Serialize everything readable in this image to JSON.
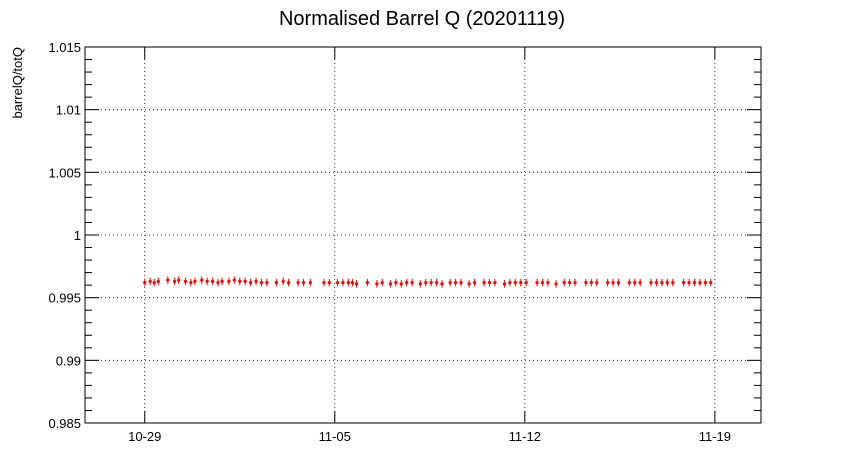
{
  "chart_data": {
    "type": "scatter",
    "title": "Normalised Barrel Q (20201119)",
    "xlabel": "",
    "ylabel": "barrelQ/totQ",
    "x_ticks": [
      "10-29",
      "11-05",
      "11-12",
      "11-19"
    ],
    "y_ticks": [
      "0.985",
      "0.99",
      "0.995",
      "1",
      "1.005",
      "1.01",
      "1.015"
    ],
    "y_tick_values": [
      0.985,
      0.99,
      0.995,
      1.0,
      1.005,
      1.01,
      1.015
    ],
    "ylim": [
      0.985,
      1.015
    ],
    "xlim_days_from_10_29": [
      -2.2,
      22.7
    ],
    "grid": true,
    "marker_color": "#ff0000",
    "error_bar": 0.0003,
    "series": [
      {
        "name": "",
        "x": [
          "2020-10-29 00:00",
          "2020-10-29 04:48",
          "2020-10-29 08:24",
          "2020-10-29 12:00",
          "2020-10-29 20:24",
          "2020-10-30 02:24",
          "2020-10-30 06:00",
          "2020-10-30 12:00",
          "2020-10-30 16:48",
          "2020-10-30 20:24",
          "2020-10-31 02:24",
          "2020-10-31 07:12",
          "2020-10-31 12:00",
          "2020-10-31 16:48",
          "2020-10-31 20:24",
          "2020-11-01 02:24",
          "2020-11-01 07:12",
          "2020-11-01 12:00",
          "2020-11-01 16:48",
          "2020-11-01 21:36",
          "2020-11-02 02:24",
          "2020-11-02 07:12",
          "2020-11-02 12:00",
          "2020-11-02 20:24",
          "2020-11-03 02:24",
          "2020-11-03 07:12",
          "2020-11-03 15:36",
          "2020-11-03 20:24",
          "2020-11-04 02:24",
          "2020-11-04 14:24",
          "2020-11-04 19:12",
          "2020-11-05 02:24",
          "2020-11-05 07:12",
          "2020-11-05 12:00",
          "2020-11-05 15:36",
          "2020-11-05 19:12",
          "2020-11-06 04:48",
          "2020-11-06 13:12",
          "2020-11-06 18:00",
          "2020-11-07 01:12",
          "2020-11-07 06:00",
          "2020-11-07 10:48",
          "2020-11-07 15:36",
          "2020-11-07 20:24",
          "2020-11-08 03:36",
          "2020-11-08 08:24",
          "2020-11-08 13:12",
          "2020-11-08 18:00",
          "2020-11-08 22:48",
          "2020-11-09 06:00",
          "2020-11-09 10:48",
          "2020-11-09 15:36",
          "2020-11-09 22:48",
          "2020-11-10 03:36",
          "2020-11-10 12:00",
          "2020-11-10 16:48",
          "2020-11-10 21:36",
          "2020-11-11 06:00",
          "2020-11-11 10:48",
          "2020-11-11 15:36",
          "2020-11-11 20:24",
          "2020-11-12 01:12",
          "2020-11-12 10:48",
          "2020-11-12 15:36",
          "2020-11-12 20:24",
          "2020-11-13 03:36",
          "2020-11-13 10:48",
          "2020-11-13 15:36",
          "2020-11-13 20:24",
          "2020-11-14 06:00",
          "2020-11-14 10:48",
          "2020-11-14 15:36",
          "2020-11-15 01:12",
          "2020-11-15 06:00",
          "2020-11-15 10:48",
          "2020-11-15 20:24",
          "2020-11-16 01:12",
          "2020-11-16 06:00",
          "2020-11-16 15:36",
          "2020-11-16 20:24",
          "2020-11-17 01:12",
          "2020-11-17 06:00",
          "2020-11-17 10:48",
          "2020-11-17 20:24",
          "2020-11-18 01:12",
          "2020-11-18 06:00",
          "2020-11-18 10:48",
          "2020-11-18 15:36",
          "2020-11-18 20:24"
        ],
        "y": [
          0.9962,
          0.9963,
          0.9962,
          0.9963,
          0.9964,
          0.9963,
          0.9964,
          0.9963,
          0.9962,
          0.9963,
          0.9964,
          0.9963,
          0.9963,
          0.9962,
          0.9963,
          0.9963,
          0.9964,
          0.9963,
          0.9963,
          0.9962,
          0.9963,
          0.9962,
          0.9962,
          0.9962,
          0.9963,
          0.9962,
          0.9962,
          0.9962,
          0.9962,
          0.9962,
          0.9962,
          0.9962,
          0.9962,
          0.9962,
          0.9962,
          0.9961,
          0.9962,
          0.9961,
          0.9962,
          0.9961,
          0.9962,
          0.9961,
          0.9962,
          0.9962,
          0.9961,
          0.9962,
          0.9962,
          0.9962,
          0.9961,
          0.9962,
          0.9962,
          0.9962,
          0.9961,
          0.9962,
          0.9962,
          0.9962,
          0.9962,
          0.9961,
          0.9962,
          0.9962,
          0.9962,
          0.9962,
          0.9962,
          0.9962,
          0.9962,
          0.9961,
          0.9962,
          0.9962,
          0.9962,
          0.9962,
          0.9962,
          0.9962,
          0.9962,
          0.9962,
          0.9962,
          0.9962,
          0.9962,
          0.9962,
          0.9962,
          0.9962,
          0.9962,
          0.9962,
          0.9962,
          0.9962,
          0.9962,
          0.9962,
          0.9962,
          0.9962,
          0.9962
        ]
      }
    ]
  }
}
